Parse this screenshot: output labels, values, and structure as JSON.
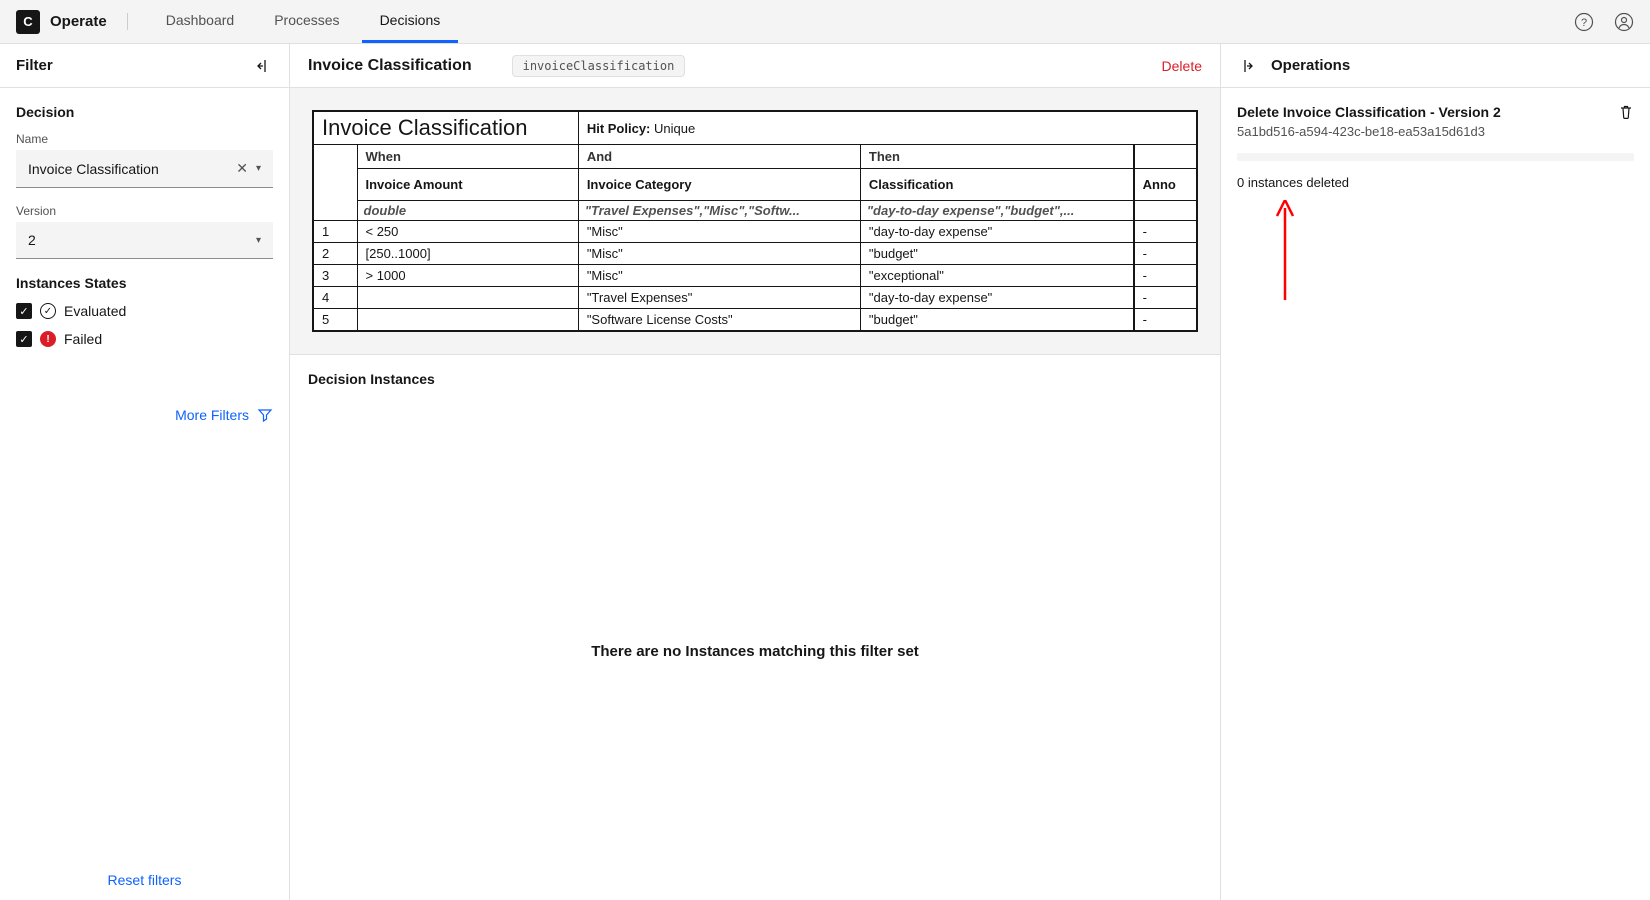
{
  "app": {
    "name": "Operate",
    "logo": "C"
  },
  "nav": {
    "items": [
      "Dashboard",
      "Processes",
      "Decisions"
    ],
    "active": 2
  },
  "filter": {
    "title": "Filter",
    "decision_section": "Decision",
    "name_label": "Name",
    "name_value": "Invoice Classification",
    "version_label": "Version",
    "version_value": "2",
    "states_label": "Instances States",
    "state_evaluated": "Evaluated",
    "state_failed": "Failed",
    "more": "More Filters",
    "reset": "Reset filters"
  },
  "main": {
    "title": "Invoice Classification",
    "code": "invoiceClassification",
    "delete": "Delete"
  },
  "dmn": {
    "title": "Invoice Classification",
    "hit_policy_label": "Hit Policy:",
    "hit_policy": "Unique",
    "columns": [
      {
        "clause": "When",
        "name": "Invoice Amount",
        "type": "double"
      },
      {
        "clause": "And",
        "name": "Invoice Category",
        "type": "\"Travel Expenses\",\"Misc\",\"Softw..."
      },
      {
        "clause": "Then",
        "name": "Classification",
        "type": "\"day-to-day expense\",\"budget\",..."
      },
      {
        "clause": "",
        "name": "Anno",
        "type": ""
      }
    ],
    "rows": [
      [
        "< 250",
        "\"Misc\"",
        "\"day-to-day expense\"",
        "-"
      ],
      [
        "[250..1000]",
        "\"Misc\"",
        "\"budget\"",
        "-"
      ],
      [
        "> 1000",
        "\"Misc\"",
        "\"exceptional\"",
        "-"
      ],
      [
        "",
        "\"Travel Expenses\"",
        "\"day-to-day expense\"",
        "-"
      ],
      [
        "",
        "\"Software License Costs\"",
        "\"budget\"",
        "-"
      ]
    ]
  },
  "instances": {
    "title": "Decision Instances",
    "empty": "There are no Instances matching this filter set"
  },
  "operations": {
    "title": "Operations",
    "op_title": "Delete Invoice Classification - Version 2",
    "op_id": "5a1bd516-a594-423c-be18-ea53a15d61d3",
    "status": "0 instances deleted"
  },
  "colors": {
    "primary": "#0f62fe",
    "danger": "#da1e28",
    "text": "#161616",
    "muted": "#525252",
    "bg_subtle": "#f4f4f4",
    "border": "#e0e0e0",
    "border_strong": "#161616"
  }
}
